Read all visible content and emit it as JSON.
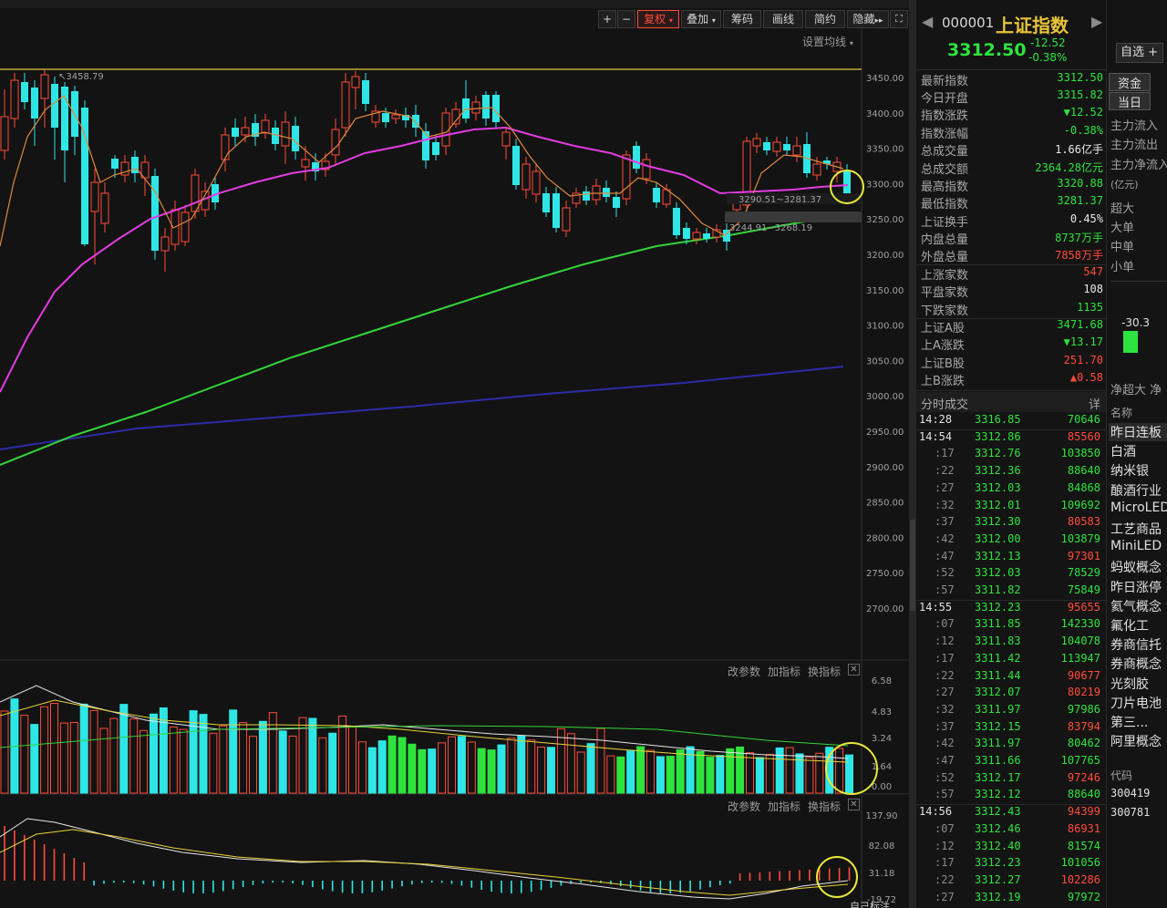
{
  "toolbar": {
    "plus": "+",
    "minus": "−",
    "fuquan": "复权",
    "diejia": "叠加",
    "chouma": "筹码",
    "huaxian": "画线",
    "jianyue": "简约",
    "yincang": "隐藏",
    "set_ma": "设置均线"
  },
  "sub_toolbar": {
    "change_param": "改参数",
    "add_indicator": "加指标",
    "swap_indicator": "换指标"
  },
  "bottom_label": "自己标注",
  "price_axis": [
    "3450.00",
    "3400.00",
    "3350.00",
    "3300.00",
    "3250.00",
    "3200.00",
    "3150.00",
    "3100.00",
    "3050.00",
    "3000.00",
    "2950.00",
    "2900.00",
    "2850.00",
    "2800.00",
    "2750.00",
    "2700.00"
  ],
  "ind1_axis": [
    "6.58",
    "4.83",
    "3.24",
    "1.64",
    "0.00"
  ],
  "ind2_axis": [
    "137.90",
    "82.08",
    "31.18",
    "-19.72"
  ],
  "chart_annotations": {
    "high_label": "3458.79",
    "range1": "3290.51~3281.37",
    "range2": "3244.91~3268.19"
  },
  "colors": {
    "up": "#ff4b3a",
    "down": "#2fe6e6",
    "ma_orange": "#e0883c",
    "ma_magenta": "#e23ce0",
    "ma_green": "#33d43a",
    "ma_blue": "#2c2ca8",
    "ref_yellow": "#e8c43a"
  },
  "chart_data": {
    "type": "candlestick",
    "yaxis": {
      "min": 2650,
      "max": 3500
    },
    "note": "Shanghai Composite daily K-line with MA lines and two sub indicators"
  },
  "quote": {
    "code": "000001",
    "name": "上证指数",
    "price": "3312.50",
    "change": "-12.52",
    "change_pct": "-0.38%",
    "watchlist": "自选"
  },
  "stats": [
    {
      "label": "最新指数",
      "value": "3312.50",
      "color": "green"
    },
    {
      "label": "今日开盘",
      "value": "3315.82",
      "color": "green"
    },
    {
      "label": "指数涨跌",
      "value": "▼12.52",
      "color": "green"
    },
    {
      "label": "指数涨幅",
      "value": "-0.38%",
      "color": "green"
    },
    {
      "label": "总成交量",
      "value": "1.66亿手",
      "color": "white"
    },
    {
      "label": "总成交额",
      "value": "2364.28亿元",
      "color": "cyan"
    },
    {
      "label": "最高指数",
      "value": "3320.88",
      "color": "green"
    },
    {
      "label": "最低指数",
      "value": "3281.37",
      "color": "green"
    },
    {
      "label": "上证换手",
      "value": "0.45%",
      "color": "white"
    },
    {
      "label": "内盘总量",
      "value": "8737万手",
      "color": "green"
    },
    {
      "label": "外盘总量",
      "value": "7858万手",
      "color": "red"
    },
    {
      "label": "上涨家数",
      "value": "547",
      "color": "red"
    },
    {
      "label": "平盘家数",
      "value": "108",
      "color": "white"
    },
    {
      "label": "下跌家数",
      "value": "1135",
      "color": "green"
    },
    {
      "label": "上证A股",
      "value": "3471.68",
      "color": "green"
    },
    {
      "label": "上A涨跌",
      "value": "▼13.17",
      "color": "green"
    },
    {
      "label": "上证B股",
      "value": "251.70",
      "color": "red"
    },
    {
      "label": "上B涨跌",
      "value": "▲0.58",
      "color": "red"
    }
  ],
  "ticks_header": {
    "title": "分时成交",
    "detail": "详"
  },
  "ticks": [
    {
      "t": "14:28",
      "p": "3316.85",
      "v": "70646",
      "vc": "green",
      "major": true
    },
    {
      "t": "14:54",
      "p": "3312.86",
      "v": "85560",
      "vc": "red",
      "major": true
    },
    {
      "t": ":17",
      "p": "3312.76",
      "v": "103850",
      "vc": "green"
    },
    {
      "t": ":22",
      "p": "3312.36",
      "v": "88640",
      "vc": "green"
    },
    {
      "t": ":27",
      "p": "3312.03",
      "v": "84868",
      "vc": "green"
    },
    {
      "t": ":32",
      "p": "3312.01",
      "v": "109692",
      "vc": "green"
    },
    {
      "t": ":37",
      "p": "3312.30",
      "v": "80583",
      "vc": "red"
    },
    {
      "t": ":42",
      "p": "3312.00",
      "v": "103879",
      "vc": "green"
    },
    {
      "t": ":47",
      "p": "3312.13",
      "v": "97301",
      "vc": "red"
    },
    {
      "t": ":52",
      "p": "3312.03",
      "v": "78529",
      "vc": "green"
    },
    {
      "t": ":57",
      "p": "3311.82",
      "v": "75849",
      "vc": "green"
    },
    {
      "t": "14:55",
      "p": "3312.23",
      "v": "95655",
      "vc": "red",
      "major": true
    },
    {
      "t": ":07",
      "p": "3311.85",
      "v": "142330",
      "vc": "green"
    },
    {
      "t": ":12",
      "p": "3311.83",
      "v": "104078",
      "vc": "green"
    },
    {
      "t": ":17",
      "p": "3311.42",
      "v": "113947",
      "vc": "green"
    },
    {
      "t": ":22",
      "p": "3311.44",
      "v": "90677",
      "vc": "red"
    },
    {
      "t": ":27",
      "p": "3312.07",
      "v": "80219",
      "vc": "red"
    },
    {
      "t": ":32",
      "p": "3311.97",
      "v": "97986",
      "vc": "green"
    },
    {
      "t": ":37",
      "p": "3312.15",
      "v": "83794",
      "vc": "red"
    },
    {
      "t": ":42",
      "p": "3311.97",
      "v": "80462",
      "vc": "green"
    },
    {
      "t": ":47",
      "p": "3311.66",
      "v": "107765",
      "vc": "green"
    },
    {
      "t": ":52",
      "p": "3312.17",
      "v": "97246",
      "vc": "red"
    },
    {
      "t": ":57",
      "p": "3312.12",
      "v": "88640",
      "vc": "green"
    },
    {
      "t": "14:56",
      "p": "3312.43",
      "v": "94399",
      "vc": "red",
      "major": true
    },
    {
      "t": ":07",
      "p": "3312.46",
      "v": "86931",
      "vc": "red"
    },
    {
      "t": ":12",
      "p": "3312.40",
      "v": "81574",
      "vc": "green"
    },
    {
      "t": ":17",
      "p": "3312.23",
      "v": "101056",
      "vc": "green"
    },
    {
      "t": ":22",
      "p": "3312.27",
      "v": "102286",
      "vc": "red"
    },
    {
      "t": ":27",
      "p": "3312.19",
      "v": "97972",
      "vc": "green"
    }
  ],
  "far_panel": {
    "tab1": "资金",
    "tab2": "当日",
    "flows": [
      "主力流入",
      "主力流出",
      "主力净流入"
    ],
    "unit": "(亿元)",
    "sizes": [
      "超大",
      "大单",
      "中单",
      "小单"
    ],
    "bar_value": "-30.3",
    "net_label": "净超大 净",
    "list_header": "名称",
    "sectors": [
      "昨日连板",
      "白酒",
      "纳米银",
      "酿酒行业",
      "MicroLED",
      "工艺商品",
      "MiniLED",
      "蚂蚁概念",
      "昨日涨停",
      "氦气概念",
      "氟化工",
      "券商信托",
      "券商概念",
      "光刻胶",
      "刀片电池",
      "第三...",
      "阿里概念"
    ],
    "code_header": "代码",
    "codes": [
      "300419",
      "300781"
    ]
  }
}
